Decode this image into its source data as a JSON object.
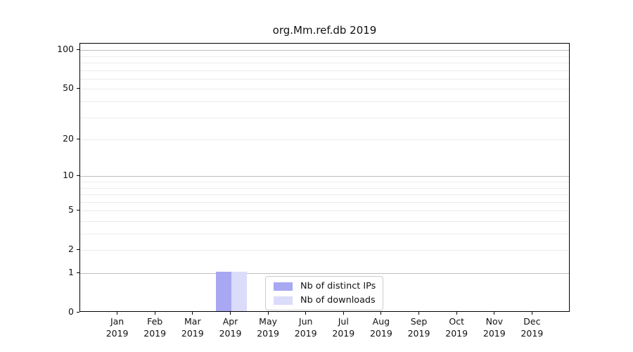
{
  "chart_data": {
    "type": "bar",
    "title": "org.Mm.ref.db 2019",
    "scale": "log1p",
    "categories": [
      "Jan",
      "Feb",
      "Mar",
      "Apr",
      "May",
      "Jun",
      "Jul",
      "Aug",
      "Sep",
      "Oct",
      "Nov",
      "Dec"
    ],
    "category_year": "2019",
    "series": [
      {
        "name": "Nb of distinct IPs",
        "color": "#a8a8f2",
        "values": [
          0,
          0,
          0,
          1,
          0,
          0,
          0,
          0,
          0,
          0,
          0,
          0
        ]
      },
      {
        "name": "Nb of downloads",
        "color": "#dbdbfa",
        "values": [
          0,
          0,
          0,
          1,
          0,
          0,
          0,
          0,
          0,
          0,
          0,
          0
        ]
      }
    ],
    "y_ticks": [
      0,
      1,
      2,
      5,
      10,
      20,
      50,
      100
    ],
    "grid_major": [
      1,
      10,
      100
    ],
    "grid_minor": [
      2,
      3,
      4,
      5,
      6,
      7,
      8,
      9,
      20,
      30,
      40,
      50,
      60,
      70,
      80,
      90
    ],
    "ylim": [
      0,
      112
    ],
    "xlabel": "",
    "ylabel": "",
    "grid": "horizontal",
    "legend_position": "lower center"
  },
  "colors": {
    "grid_minor": "#ebebeb",
    "grid_major": "#bdbdbd",
    "spine": "#000000",
    "legend_border": "#cccccc"
  }
}
